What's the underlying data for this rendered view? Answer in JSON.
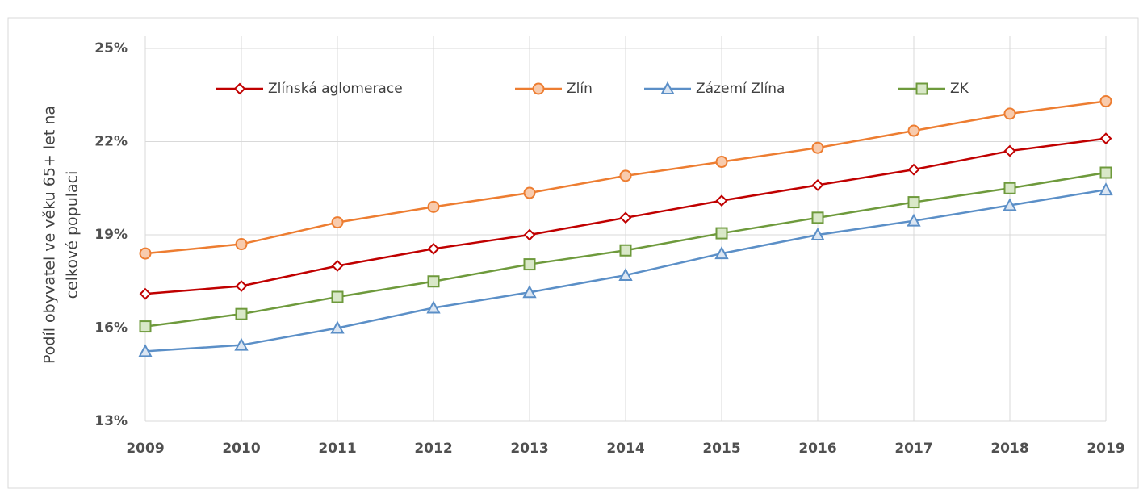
{
  "chart_data": {
    "type": "line",
    "y_label": [
      "Podíl obyvatel ve věku 65+ let na",
      "celkové populaci"
    ],
    "categories": [
      "2009",
      "2010",
      "2011",
      "2012",
      "2013",
      "2014",
      "2015",
      "2016",
      "2017",
      "2018",
      "2019"
    ],
    "ylim": [
      13,
      25
    ],
    "yticks": [
      {
        "value": 13,
        "label": "13%"
      },
      {
        "value": 16,
        "label": "16%"
      },
      {
        "value": 19,
        "label": "19%"
      },
      {
        "value": 22,
        "label": "22%"
      },
      {
        "value": 25,
        "label": "25%"
      }
    ],
    "grid": true,
    "legend": "top",
    "series": [
      {
        "name": "Zlínská aglomerace",
        "color": "#c00000",
        "fill": "#ffffff",
        "marker": "diamond",
        "values": [
          17.1,
          17.35,
          18.0,
          18.55,
          19.0,
          19.55,
          20.1,
          20.6,
          21.1,
          21.7,
          22.1
        ]
      },
      {
        "name": "Zlín",
        "color": "#ed7d31",
        "fill": "#f8cbad",
        "marker": "circle",
        "values": [
          18.4,
          18.7,
          19.4,
          19.9,
          20.35,
          20.9,
          21.35,
          21.8,
          22.35,
          22.9,
          23.3
        ]
      },
      {
        "name": "Zázemí Zlína",
        "color": "#5b8fc7",
        "fill": "#dce6f2",
        "marker": "triangle",
        "values": [
          15.25,
          15.45,
          16.0,
          16.65,
          17.15,
          17.7,
          18.4,
          19.0,
          19.45,
          19.95,
          20.45
        ]
      },
      {
        "name": "ZK",
        "color": "#6e9a3c",
        "fill": "#d9e8c8",
        "marker": "square",
        "values": [
          16.05,
          16.45,
          17.0,
          17.5,
          18.05,
          18.5,
          19.05,
          19.55,
          20.05,
          20.5,
          21.0
        ]
      }
    ]
  }
}
